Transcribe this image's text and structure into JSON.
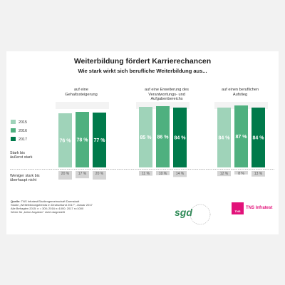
{
  "title": "Weiterbildung fördert Karrierechancen",
  "subtitle": "Wie stark wirkt sich berufliche Weiterbildung aus...",
  "legend": [
    "2015",
    "2016",
    "2017"
  ],
  "row_labels": {
    "upper": [
      "Stark bis",
      "äußerst stark"
    ],
    "lower": [
      "Weniger stark bis",
      "überhaupt nicht"
    ]
  },
  "colors": {
    "2015": "#9fd3b9",
    "2016": "#4fb07f",
    "2017": "#007a4b",
    "lower": "#d4d4d4"
  },
  "chart_data": {
    "type": "bar",
    "title": "Weiterbildung fördert Karrierechancen",
    "subtitle": "Wie stark wirkt sich berufliche Weiterbildung aus...",
    "categories": [
      [
        "auf eine",
        "Gehaltssteigerung"
      ],
      [
        "auf eine Erweiterung des",
        "Verantwortungs- und",
        "Aufgabenbereichs"
      ],
      [
        "auf einen beruflichen",
        "Aufstieg"
      ]
    ],
    "series": [
      {
        "name": "2015",
        "values": [
          76,
          85,
          84
        ],
        "lower": [
          20,
          11,
          12
        ]
      },
      {
        "name": "2016",
        "values": [
          78,
          86,
          87
        ],
        "lower": [
          17,
          10,
          8
        ]
      },
      {
        "name": "2017",
        "values": [
          77,
          84,
          84
        ],
        "lower": [
          20,
          14,
          13
        ]
      }
    ],
    "unit": "%"
  },
  "notes": {
    "source": "Quelle:",
    "lines": [
      "TNS Infratest/Studiengemeinschaft Darmstadt",
      "Studie „Weiterbildungstrends in Deutschland 2017\", Januar 2017",
      "Alle Befragten 2015: n = 300; 2016 n=1000; 2017 n=1000",
      "Werte für „keine Angaben\" nicht dargestellt"
    ]
  },
  "logos": {
    "sgd": "sgd",
    "sgd_ring": "Weiterbildung · Studiengemeinschaft",
    "tns_box": "TNS",
    "tns_name": "TNS Infratest"
  }
}
